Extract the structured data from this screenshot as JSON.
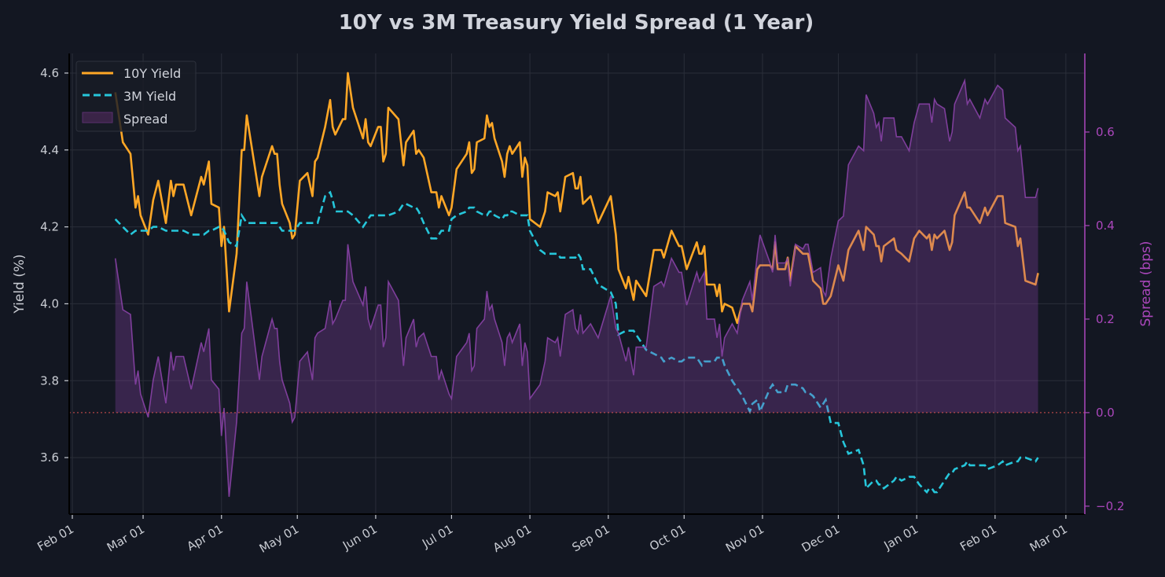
{
  "chart_data": {
    "type": "line",
    "title": "10Y vs 3M Treasury Yield Spread (1 Year)",
    "xlabel": "",
    "ylabel": "Yield (%)",
    "ylabel_right": "Spread (bps)",
    "xlim": [
      "2025-01-31",
      "2026-03-08"
    ],
    "ylim": [
      3.453,
      4.651
    ],
    "ylim_right": [
      -0.217,
      0.768
    ],
    "grid": true,
    "legend_position": "top-left",
    "x_tick_labels": [
      "Feb 01",
      "Mar 01",
      "Apr 01",
      "May 01",
      "Jun 01",
      "Jul 01",
      "Aug 01",
      "Sep 01",
      "Oct 01",
      "Nov 01",
      "Dec 01",
      "Jan 01",
      "Feb 01",
      "Mar 01"
    ],
    "x_tick_dates": [
      "2025-02-01",
      "2025-03-01",
      "2025-04-01",
      "2025-05-01",
      "2025-06-01",
      "2025-07-01",
      "2025-08-01",
      "2025-09-01",
      "2025-10-01",
      "2025-11-01",
      "2025-12-01",
      "2026-01-01",
      "2026-02-01",
      "2026-03-01"
    ],
    "y_ticks": [
      "3.6",
      "3.8",
      "4.0",
      "4.2",
      "4.4",
      "4.6"
    ],
    "y_ticks_right": [
      "−0.2",
      "0.0",
      "0.2",
      "0.4",
      "0.6"
    ],
    "zero_line": 0.0,
    "colors": {
      "ten_year": "#FFA726",
      "three_month": "#26C6DA",
      "spread": "#8E44AD",
      "spread_axis": "#AB47BC",
      "zero_line": "#D9534F",
      "background": "#131722",
      "grid": "#2A2E39"
    },
    "x": [
      "2025-02-18",
      "2025-02-21",
      "2025-02-24",
      "2025-02-26",
      "2025-02-27",
      "2025-02-28",
      "2025-03-03",
      "2025-03-05",
      "2025-03-07",
      "2025-03-10",
      "2025-03-12",
      "2025-03-13",
      "2025-03-14",
      "2025-03-17",
      "2025-03-20",
      "2025-03-24",
      "2025-03-25",
      "2025-03-27",
      "2025-03-28",
      "2025-03-31",
      "2025-04-01",
      "2025-04-02",
      "2025-04-04",
      "2025-04-07",
      "2025-04-09",
      "2025-04-10",
      "2025-04-11",
      "2025-04-16",
      "2025-04-17",
      "2025-04-21",
      "2025-04-22",
      "2025-04-23",
      "2025-04-24",
      "2025-04-25",
      "2025-04-28",
      "2025-04-29",
      "2025-04-30",
      "2025-05-02",
      "2025-05-05",
      "2025-05-07",
      "2025-05-08",
      "2025-05-09",
      "2025-05-12",
      "2025-05-14",
      "2025-05-15",
      "2025-05-16",
      "2025-05-19",
      "2025-05-20",
      "2025-05-21",
      "2025-05-23",
      "2025-05-27",
      "2025-05-28",
      "2025-05-29",
      "2025-05-30",
      "2025-06-02",
      "2025-06-03",
      "2025-06-04",
      "2025-06-05",
      "2025-06-06",
      "2025-06-10",
      "2025-06-12",
      "2025-06-13",
      "2025-06-16",
      "2025-06-17",
      "2025-06-18",
      "2025-06-20",
      "2025-06-23",
      "2025-06-25",
      "2025-06-26",
      "2025-06-27",
      "2025-06-30",
      "2025-07-01",
      "2025-07-03",
      "2025-07-07",
      "2025-07-08",
      "2025-07-09",
      "2025-07-10",
      "2025-07-11",
      "2025-07-14",
      "2025-07-15",
      "2025-07-16",
      "2025-07-17",
      "2025-07-18",
      "2025-07-21",
      "2025-07-22",
      "2025-07-23",
      "2025-07-24",
      "2025-07-25",
      "2025-07-28",
      "2025-07-29",
      "2025-07-30",
      "2025-07-31",
      "2025-08-01",
      "2025-08-05",
      "2025-08-07",
      "2025-08-08",
      "2025-08-11",
      "2025-08-12",
      "2025-08-13",
      "2025-08-15",
      "2025-08-18",
      "2025-08-19",
      "2025-08-20",
      "2025-08-21",
      "2025-08-22",
      "2025-08-25",
      "2025-08-28",
      "2025-09-02",
      "2025-09-04",
      "2025-09-05",
      "2025-09-08",
      "2025-09-09",
      "2025-09-11",
      "2025-09-12",
      "2025-09-16",
      "2025-09-19",
      "2025-09-22",
      "2025-09-23",
      "2025-09-26",
      "2025-09-29",
      "2025-09-30",
      "2025-10-02",
      "2025-10-06",
      "2025-10-07",
      "2025-10-08",
      "2025-10-09",
      "2025-10-10",
      "2025-10-13",
      "2025-10-14",
      "2025-10-15",
      "2025-10-16",
      "2025-10-17",
      "2025-10-20",
      "2025-10-22",
      "2025-10-24",
      "2025-10-27",
      "2025-10-28",
      "2025-10-30",
      "2025-10-31",
      "2025-11-04",
      "2025-11-05",
      "2025-11-06",
      "2025-11-07",
      "2025-11-10",
      "2025-11-11",
      "2025-11-12",
      "2025-11-14",
      "2025-11-17",
      "2025-11-18",
      "2025-11-19",
      "2025-11-21",
      "2025-11-24",
      "2025-11-25",
      "2025-11-26",
      "2025-11-28",
      "2025-12-01",
      "2025-12-03",
      "2025-12-05",
      "2025-12-09",
      "2025-12-11",
      "2025-12-12",
      "2025-12-15",
      "2025-12-16",
      "2025-12-17",
      "2025-12-18",
      "2025-12-19",
      "2025-12-23",
      "2025-12-24",
      "2025-12-26",
      "2025-12-29",
      "2025-12-31",
      "2026-01-02",
      "2026-01-05",
      "2026-01-06",
      "2026-01-07",
      "2026-01-08",
      "2026-01-09",
      "2026-01-12",
      "2026-01-14",
      "2026-01-15",
      "2026-01-16",
      "2026-01-20",
      "2026-01-21",
      "2026-01-22",
      "2026-01-26",
      "2026-01-28",
      "2026-01-29",
      "2026-02-02",
      "2026-02-04",
      "2026-02-05",
      "2026-02-09",
      "2026-02-10",
      "2026-02-11",
      "2026-02-13",
      "2026-02-17",
      "2026-02-18"
    ],
    "series": [
      {
        "name": "10Y Yield",
        "axis": "left",
        "style": "solid",
        "values": [
          4.55,
          4.42,
          4.39,
          4.25,
          4.28,
          4.23,
          4.18,
          4.27,
          4.32,
          4.21,
          4.32,
          4.28,
          4.31,
          4.31,
          4.23,
          4.33,
          4.31,
          4.37,
          4.26,
          4.25,
          4.15,
          4.2,
          3.98,
          4.13,
          4.4,
          4.4,
          4.49,
          4.28,
          4.33,
          4.41,
          4.39,
          4.39,
          4.31,
          4.26,
          4.21,
          4.17,
          4.18,
          4.32,
          4.34,
          4.28,
          4.37,
          4.38,
          4.46,
          4.53,
          4.46,
          4.44,
          4.48,
          4.48,
          4.6,
          4.51,
          4.43,
          4.48,
          4.42,
          4.41,
          4.46,
          4.46,
          4.37,
          4.39,
          4.51,
          4.48,
          4.36,
          4.42,
          4.45,
          4.39,
          4.4,
          4.38,
          4.29,
          4.29,
          4.25,
          4.28,
          4.23,
          4.25,
          4.35,
          4.39,
          4.42,
          4.34,
          4.35,
          4.42,
          4.43,
          4.49,
          4.46,
          4.47,
          4.43,
          4.37,
          4.33,
          4.39,
          4.41,
          4.39,
          4.42,
          4.33,
          4.38,
          4.36,
          4.22,
          4.2,
          4.24,
          4.29,
          4.28,
          4.29,
          4.24,
          4.33,
          4.34,
          4.3,
          4.3,
          4.33,
          4.26,
          4.28,
          4.21,
          4.28,
          4.18,
          4.09,
          4.04,
          4.07,
          4.01,
          4.06,
          4.02,
          4.14,
          4.14,
          4.12,
          4.19,
          4.15,
          4.15,
          4.09,
          4.16,
          4.13,
          4.13,
          4.15,
          4.05,
          4.05,
          4.02,
          4.05,
          3.98,
          4.0,
          3.99,
          3.95,
          4.0,
          4.0,
          3.98,
          4.09,
          4.1,
          4.1,
          4.09,
          4.16,
          4.09,
          4.09,
          4.12,
          4.06,
          4.15,
          4.13,
          4.13,
          4.13,
          4.06,
          4.04,
          4.0,
          4.0,
          4.02,
          4.1,
          4.06,
          4.14,
          4.19,
          4.14,
          4.2,
          4.18,
          4.15,
          4.15,
          4.11,
          4.15,
          4.17,
          4.14,
          4.13,
          4.11,
          4.17,
          4.19,
          4.17,
          4.18,
          4.14,
          4.18,
          4.17,
          4.19,
          4.14,
          4.16,
          4.23,
          4.29,
          4.25,
          4.25,
          4.21,
          4.25,
          4.23,
          4.28,
          4.28,
          4.21,
          4.2,
          4.15,
          4.17,
          4.06,
          4.05,
          4.08
        ]
      },
      {
        "name": "3M Yield",
        "axis": "left",
        "style": "dashed",
        "values": [
          4.22,
          4.2,
          4.18,
          4.19,
          4.19,
          4.19,
          4.19,
          4.2,
          4.2,
          4.19,
          4.19,
          4.19,
          4.19,
          4.19,
          4.18,
          4.18,
          4.18,
          4.19,
          4.19,
          4.2,
          4.2,
          4.19,
          4.16,
          4.15,
          4.23,
          4.22,
          4.21,
          4.21,
          4.21,
          4.21,
          4.21,
          4.21,
          4.2,
          4.19,
          4.19,
          4.19,
          4.19,
          4.21,
          4.21,
          4.21,
          4.21,
          4.21,
          4.28,
          4.29,
          4.27,
          4.24,
          4.24,
          4.24,
          4.24,
          4.23,
          4.2,
          4.21,
          4.22,
          4.23,
          4.23,
          4.23,
          4.23,
          4.23,
          4.23,
          4.24,
          4.26,
          4.26,
          4.25,
          4.25,
          4.24,
          4.21,
          4.17,
          4.17,
          4.18,
          4.19,
          4.19,
          4.22,
          4.23,
          4.24,
          4.25,
          4.25,
          4.25,
          4.24,
          4.23,
          4.23,
          4.24,
          4.24,
          4.23,
          4.22,
          4.23,
          4.23,
          4.24,
          4.24,
          4.23,
          4.23,
          4.23,
          4.23,
          4.19,
          4.14,
          4.13,
          4.13,
          4.13,
          4.13,
          4.12,
          4.12,
          4.12,
          4.12,
          4.13,
          4.12,
          4.09,
          4.09,
          4.05,
          4.03,
          4.0,
          3.92,
          3.93,
          3.93,
          3.93,
          3.92,
          3.88,
          3.87,
          3.86,
          3.85,
          3.86,
          3.85,
          3.85,
          3.86,
          3.86,
          3.85,
          3.84,
          3.85,
          3.85,
          3.85,
          3.86,
          3.86,
          3.86,
          3.84,
          3.8,
          3.78,
          3.76,
          3.72,
          3.74,
          3.75,
          3.72,
          3.78,
          3.79,
          3.78,
          3.77,
          3.77,
          3.79,
          3.79,
          3.79,
          3.78,
          3.77,
          3.77,
          3.76,
          3.73,
          3.74,
          3.75,
          3.69,
          3.69,
          3.64,
          3.61,
          3.62,
          3.58,
          3.52,
          3.54,
          3.54,
          3.53,
          3.53,
          3.52,
          3.54,
          3.55,
          3.54,
          3.55,
          3.55,
          3.53,
          3.51,
          3.52,
          3.52,
          3.51,
          3.51,
          3.54,
          3.56,
          3.56,
          3.57,
          3.58,
          3.59,
          3.58,
          3.58,
          3.58,
          3.57,
          3.58,
          3.59,
          3.58,
          3.59,
          3.59,
          3.6,
          3.6,
          3.59,
          3.6
        ]
      },
      {
        "name": "Spread",
        "axis": "right",
        "style": "area",
        "values": [
          0.33,
          0.22,
          0.21,
          0.06,
          0.09,
          0.04,
          -0.01,
          0.07,
          0.12,
          0.02,
          0.13,
          0.09,
          0.12,
          0.12,
          0.05,
          0.15,
          0.13,
          0.18,
          0.07,
          0.05,
          -0.05,
          0.01,
          -0.18,
          -0.02,
          0.17,
          0.18,
          0.28,
          0.07,
          0.12,
          0.2,
          0.18,
          0.18,
          0.11,
          0.07,
          0.02,
          -0.02,
          -0.01,
          0.11,
          0.13,
          0.07,
          0.16,
          0.17,
          0.18,
          0.24,
          0.19,
          0.2,
          0.24,
          0.24,
          0.36,
          0.28,
          0.23,
          0.27,
          0.2,
          0.18,
          0.23,
          0.23,
          0.14,
          0.16,
          0.28,
          0.24,
          0.1,
          0.16,
          0.2,
          0.14,
          0.16,
          0.17,
          0.12,
          0.12,
          0.07,
          0.09,
          0.04,
          0.03,
          0.12,
          0.15,
          0.17,
          0.09,
          0.1,
          0.18,
          0.2,
          0.26,
          0.22,
          0.23,
          0.2,
          0.15,
          0.1,
          0.16,
          0.17,
          0.15,
          0.19,
          0.1,
          0.15,
          0.13,
          0.03,
          0.06,
          0.11,
          0.16,
          0.15,
          0.16,
          0.12,
          0.21,
          0.22,
          0.18,
          0.17,
          0.21,
          0.17,
          0.19,
          0.16,
          0.25,
          0.18,
          0.17,
          0.11,
          0.14,
          0.08,
          0.14,
          0.14,
          0.27,
          0.28,
          0.27,
          0.33,
          0.3,
          0.3,
          0.23,
          0.3,
          0.28,
          0.29,
          0.3,
          0.2,
          0.2,
          0.16,
          0.19,
          0.12,
          0.16,
          0.19,
          0.17,
          0.24,
          0.28,
          0.24,
          0.34,
          0.38,
          0.32,
          0.3,
          0.38,
          0.32,
          0.32,
          0.33,
          0.27,
          0.36,
          0.35,
          0.36,
          0.36,
          0.3,
          0.31,
          0.26,
          0.25,
          0.33,
          0.41,
          0.42,
          0.53,
          0.57,
          0.56,
          0.68,
          0.64,
          0.61,
          0.62,
          0.58,
          0.63,
          0.63,
          0.59,
          0.59,
          0.56,
          0.62,
          0.66,
          0.66,
          0.66,
          0.62,
          0.67,
          0.66,
          0.65,
          0.58,
          0.6,
          0.66,
          0.71,
          0.66,
          0.67,
          0.63,
          0.67,
          0.66,
          0.7,
          0.69,
          0.63,
          0.61,
          0.56,
          0.57,
          0.46,
          0.46,
          0.48
        ]
      }
    ]
  }
}
